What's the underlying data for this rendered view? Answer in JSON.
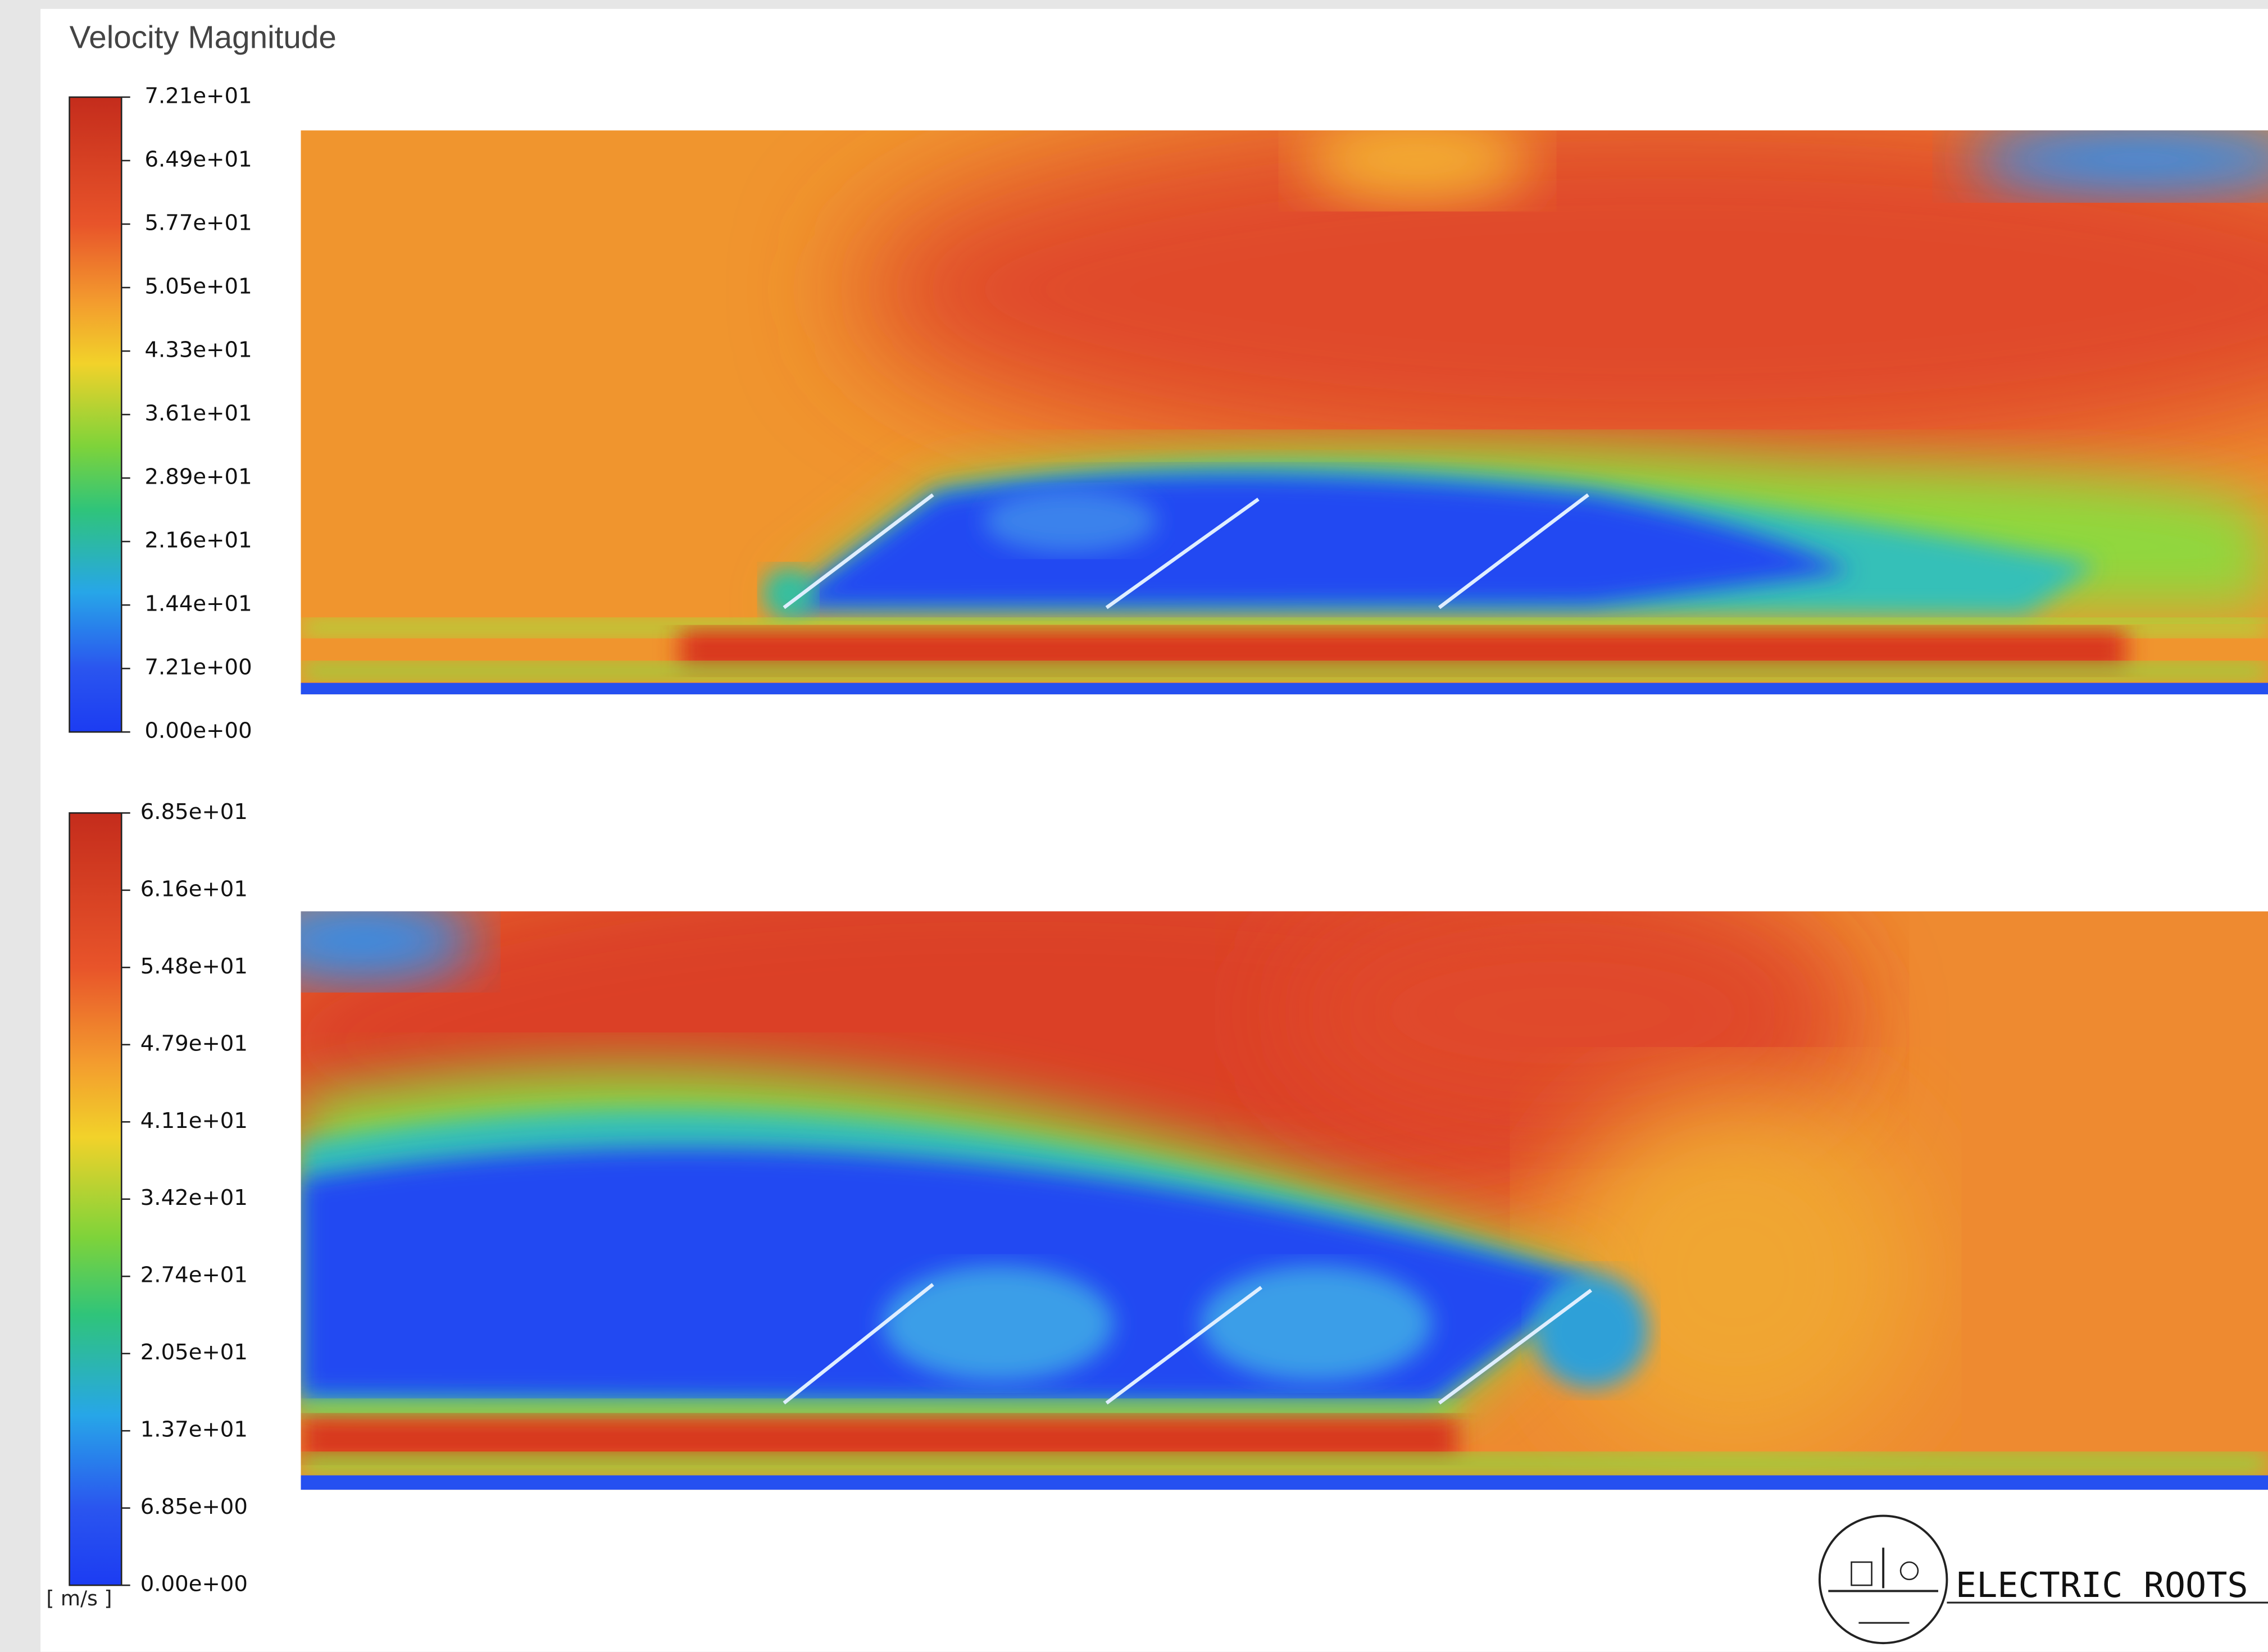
{
  "header": {
    "title": "Velocity Magnitude"
  },
  "colorbars": [
    {
      "labels": [
        "7.21e+01",
        "6.49e+01",
        "5.77e+01",
        "5.05e+01",
        "4.33e+01",
        "3.61e+01",
        "2.89e+01",
        "2.16e+01",
        "1.44e+01",
        "7.21e+00",
        "0.00e+00"
      ]
    },
    {
      "labels": [
        "6.85e+01",
        "6.16e+01",
        "5.48e+01",
        "4.79e+01",
        "4.11e+01",
        "3.42e+01",
        "2.74e+01",
        "2.05e+01",
        "1.37e+01",
        "6.85e+00",
        "0.00e+00"
      ]
    }
  ],
  "unit": "[ m/s ]",
  "logo": {
    "text": "ELECTRIC ROOTS"
  }
}
